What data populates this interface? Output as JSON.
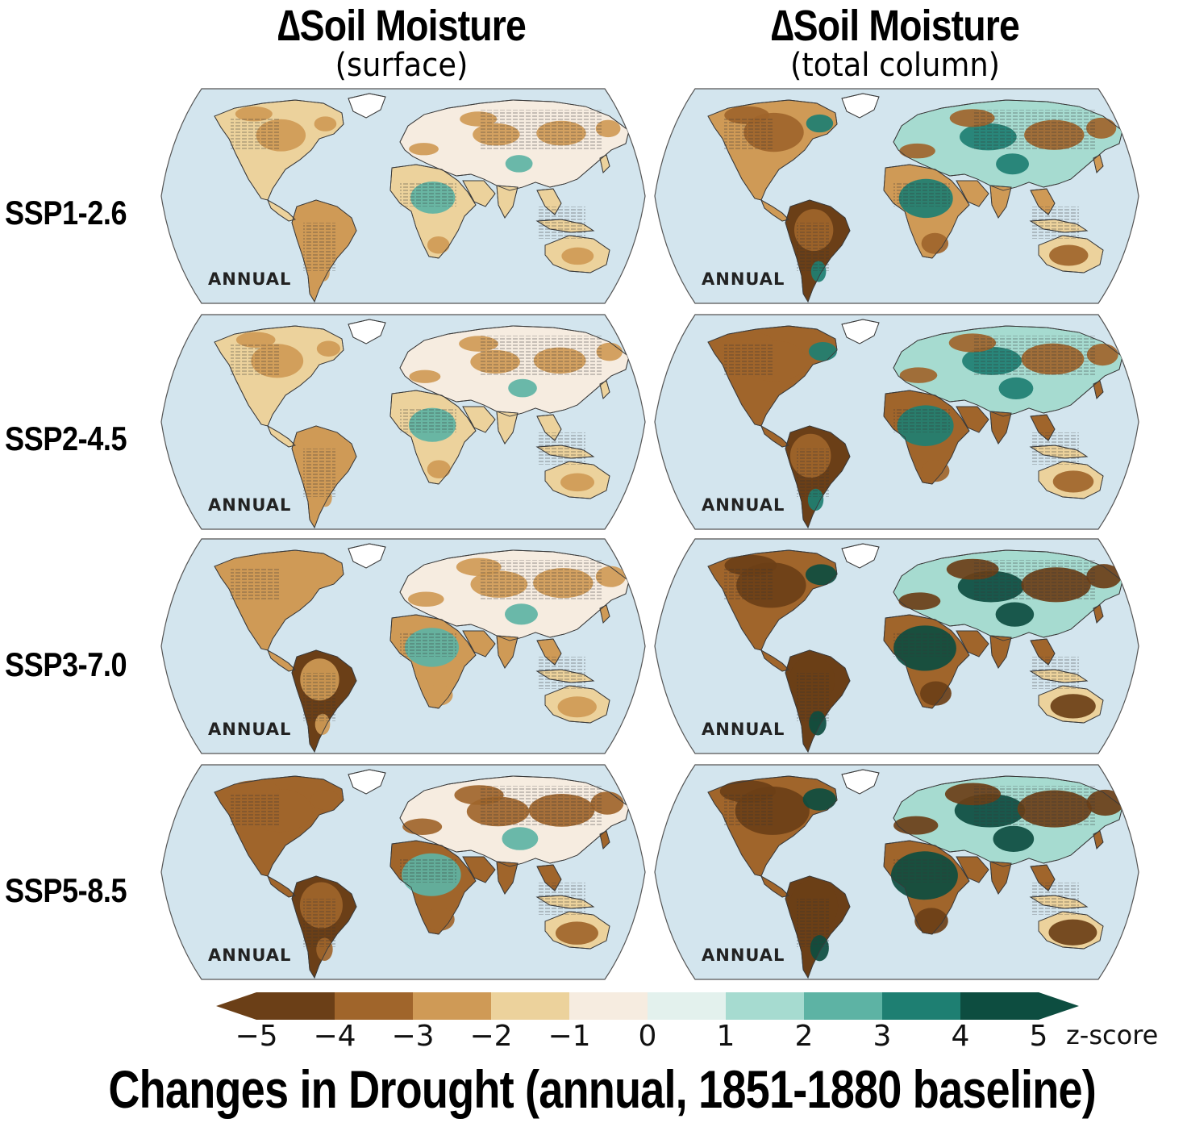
{
  "columns": [
    {
      "title": "∆Soil Moisture",
      "subtitle": "(surface)"
    },
    {
      "title": "∆Soil Moisture",
      "subtitle": "(total column)"
    }
  ],
  "rows": [
    {
      "label": "SSP1-2.6"
    },
    {
      "label": "SSP2-4.5"
    },
    {
      "label": "SSP3-7.0"
    },
    {
      "label": "SSP5-8.5"
    }
  ],
  "panel_label": "ANNUAL",
  "colorbar": {
    "ticks": [
      "−5",
      "−4",
      "−3",
      "−2",
      "−1",
      "0",
      "1",
      "2",
      "3",
      "4",
      "5"
    ],
    "unit": "z-score",
    "colors": [
      "#6b3f17",
      "#a0652b",
      "#cf9a56",
      "#ecd29c",
      "#f6ece0",
      "#e3f1ed",
      "#a6dbd0",
      "#5db3a4",
      "#1e7f72",
      "#0d4d40"
    ],
    "extend_low_color": "#6b3f17",
    "extend_high_color": "#0d4d40"
  },
  "ocean_color": "#d3e5ee",
  "panel_intensity": [
    [
      0.28,
      0.55
    ],
    [
      0.35,
      0.62
    ],
    [
      0.55,
      0.8
    ],
    [
      0.7,
      0.92
    ]
  ],
  "figure_title": "Changes in Drought (annual, 1851-1880 baseline)"
}
